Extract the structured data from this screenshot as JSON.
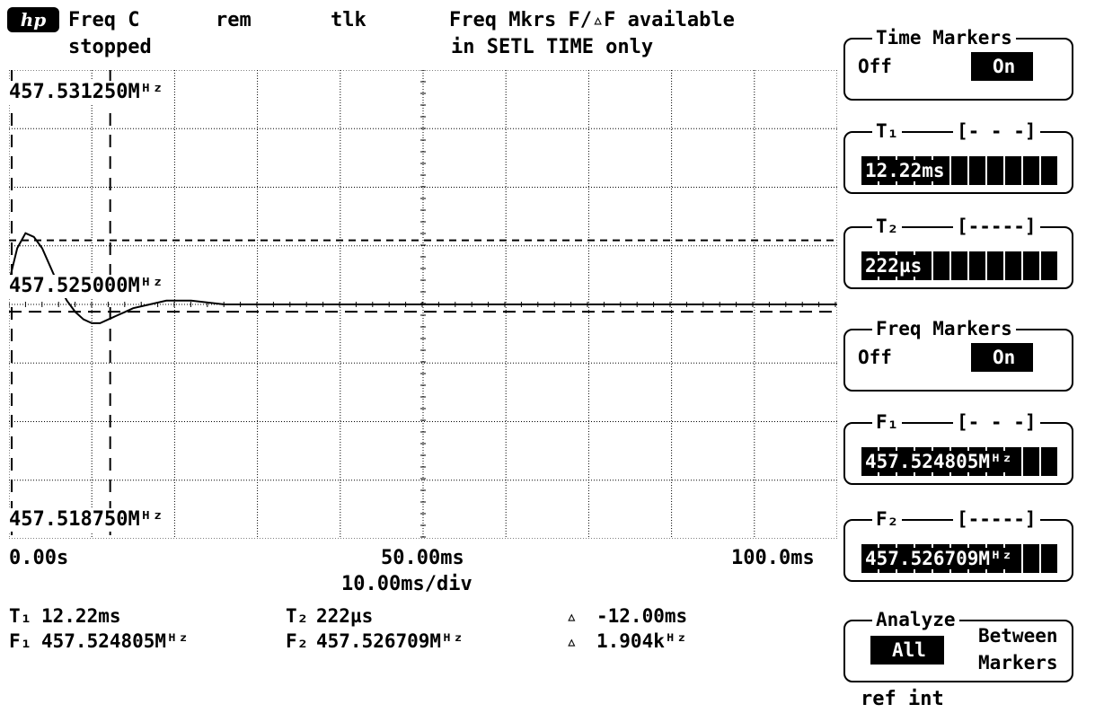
{
  "header": {
    "logo_text": "hp",
    "mode": "Freq C",
    "state": "stopped",
    "remote": "rem",
    "talk": "tlk",
    "notice_line1": "Freq Mkrs F/▵F available",
    "notice_line2": "in SETL TIME only"
  },
  "graph": {
    "y_top_label": "457.531250Mᴴᶻ",
    "y_mid_label": "457.525000Mᴴᶻ",
    "y_bottom_label": "457.518750Mᴴᶻ",
    "x_start": "0.00s",
    "x_mid": "50.00ms",
    "x_end": "100.0ms",
    "x_scale": "10.00ms/div"
  },
  "readout": {
    "t1_label": "T₁",
    "t1_value": "12.22ms",
    "t2_label": "T₂",
    "t2_value": "222µs",
    "dt_symbol": "▵",
    "dt_value": "-12.00ms",
    "f1_label": "F₁",
    "f1_value": "457.524805Mᴴᶻ",
    "f2_label": "F₂",
    "f2_value": "457.526709Mᴴᶻ",
    "df_symbol": "▵",
    "df_value": "1.904kᴴᶻ"
  },
  "softkeys": {
    "time_markers": {
      "title": "Time Markers",
      "off": "Off",
      "on": "On"
    },
    "t1": {
      "title": "T₁",
      "bracket": "[- - -]",
      "value": "12.22ms"
    },
    "t2": {
      "title": "T₂",
      "bracket": "[-----]",
      "value": "222µs"
    },
    "freq_markers": {
      "title": "Freq Markers",
      "off": "Off",
      "on": "On"
    },
    "f1": {
      "title": "F₁",
      "bracket": "[- - -]",
      "value": "457.524805Mᴴᶻ"
    },
    "f2": {
      "title": "F₂",
      "bracket": "[-----]",
      "value": "457.526709Mᴴᶻ"
    },
    "analyze": {
      "title": "Analyze",
      "all": "All",
      "between_line1": "Between",
      "between_line2": "Markers"
    }
  },
  "footer": {
    "ref": "ref int"
  },
  "chart_data": {
    "type": "line",
    "x_unit": "ms",
    "y_unit": "MHz",
    "xlim": [
      0,
      100
    ],
    "ylim": [
      457.51875,
      457.53125
    ],
    "x_divisions": 10,
    "y_divisions": 8,
    "grid": true,
    "series": [
      {
        "x": [
          0,
          1,
          2,
          3,
          4,
          5,
          6,
          7,
          8,
          9,
          10,
          11,
          12,
          13,
          14,
          15,
          17,
          19,
          22,
          26,
          30,
          40,
          50,
          60,
          70,
          80,
          90,
          95,
          100
        ],
        "y": [
          457.5256,
          457.5265,
          457.5269,
          457.5268,
          457.5265,
          457.526,
          457.5255,
          457.5251,
          457.5248,
          457.5246,
          457.5245,
          457.5245,
          457.5246,
          457.5247,
          457.5248,
          457.5249,
          457.525,
          457.5251,
          457.5251,
          457.525,
          457.525,
          457.525,
          457.525,
          457.525,
          457.525,
          457.525,
          457.525,
          457.525,
          457.525
        ]
      }
    ],
    "markers": {
      "t1_ms": 12.22,
      "t2_ms": 0.222,
      "f1_mhz": 457.524805,
      "f2_mhz": 457.526709
    }
  }
}
